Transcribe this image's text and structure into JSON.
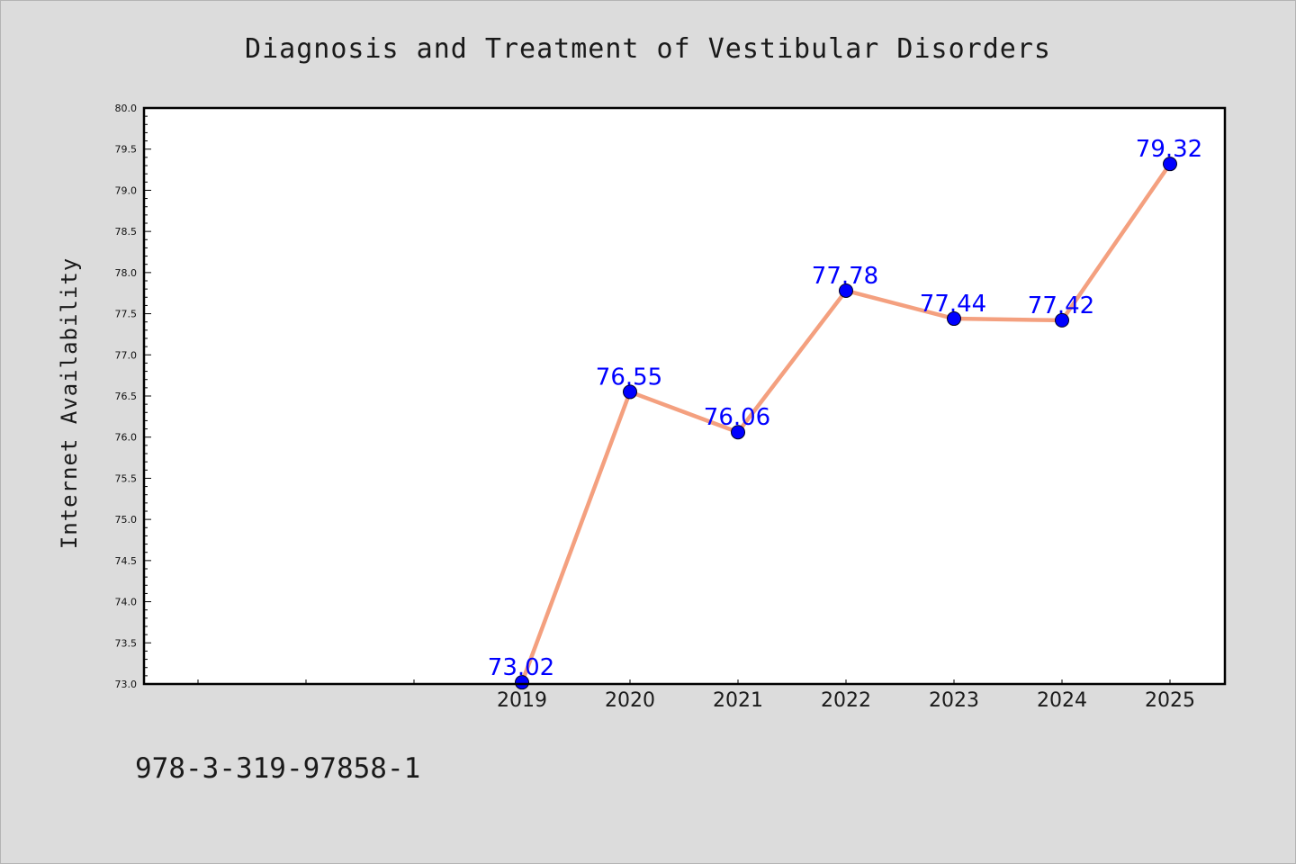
{
  "chart_data": {
    "type": "line",
    "title": "Diagnosis and Treatment of Vestibular Disorders",
    "xlabel": "",
    "ylabel": "Internet Availability",
    "categories": [
      "2019",
      "2020",
      "2021",
      "2022",
      "2023",
      "2024",
      "2025"
    ],
    "series": [
      {
        "values": [
          73.02,
          76.55,
          76.06,
          77.78,
          77.44,
          77.42,
          79.32
        ],
        "labels": [
          "73.02",
          "76.55",
          "76.06",
          "77.78",
          "77.44",
          "77.42",
          "79.32"
        ],
        "line_color": "#f4a07f",
        "marker_color": "#0000ff"
      }
    ],
    "ylim": [
      73.0,
      80.0
    ],
    "yticks": [
      "73.0",
      "73.5",
      "74.0",
      "74.5",
      "75.0",
      "75.5",
      "76.0",
      "76.5",
      "77.0",
      "77.5",
      "78.0",
      "78.5",
      "79.0",
      "79.5",
      "80.0"
    ],
    "grid": false,
    "data_label_color": "#0000ff"
  },
  "footer": {
    "isbn": "978-3-319-97858-1"
  },
  "colors": {
    "background": "#dcdcdc",
    "plot_background": "#ffffff",
    "axis": "#000000"
  }
}
